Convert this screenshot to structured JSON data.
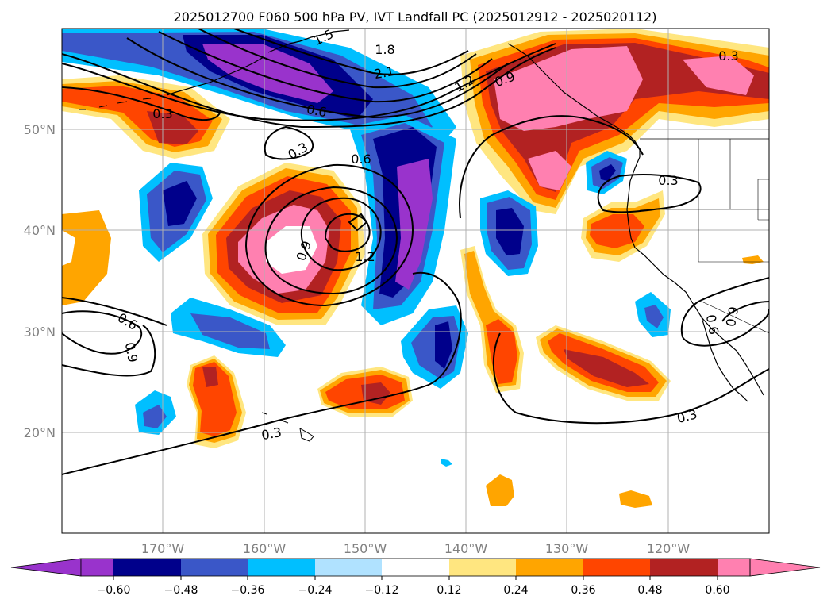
{
  "title": "2025012700 F060 500 hPa PV, IVT Landfall PC (2025012912 - 2025020112)",
  "map": {
    "projection": "PlateCarree",
    "lon_range": [
      -180,
      -110
    ],
    "lat_range": [
      10,
      60
    ],
    "lat_labels": [
      "20°N",
      "30°N",
      "40°N",
      "50°N"
    ],
    "lon_labels": [
      "170°W",
      "160°W",
      "150°W",
      "140°W",
      "130°W",
      "120°W"
    ],
    "gridlines": true,
    "land_outline_color": "#000000"
  },
  "colorbar": {
    "orientation": "horizontal",
    "extend": "both",
    "ticks": [
      "−0.60",
      "−0.48",
      "−0.36",
      "−0.24",
      "−0.12",
      "0.12",
      "0.24",
      "0.36",
      "0.48",
      "0.60"
    ],
    "levels": [
      -0.6,
      -0.48,
      -0.36,
      -0.24,
      -0.12,
      0.12,
      0.24,
      0.36,
      0.48,
      0.6
    ],
    "colors": [
      "#9933cc",
      "#00008b",
      "#3a57c8",
      "#00bfff",
      "#b0e2ff",
      "#ffffff",
      "#ffe680",
      "#ffa500",
      "#ff4500",
      "#b22222",
      "#ff80b0"
    ]
  },
  "contour_labels": [
    "1.5",
    "1.8",
    "2.1",
    "1.2",
    "0.9",
    "0.3",
    "0.6",
    "0.3",
    "0.6",
    "0.9",
    "1.2",
    "0.3",
    "0.6",
    "0.9",
    "0.3",
    "0.3",
    "0.6",
    "0.9",
    "0.3"
  ],
  "chart_data": {
    "type": "heatmap",
    "title": "2025012700 F060 500 hPa PV, IVT Landfall PC (2025012912 - 2025020112)",
    "fill_field_levels": [
      -0.6,
      -0.48,
      -0.36,
      -0.24,
      -0.12,
      0.12,
      0.24,
      0.36,
      0.48,
      0.6
    ],
    "contour_field_levels": [
      0.3,
      0.6,
      0.9,
      1.2,
      1.5,
      1.8,
      2.1
    ],
    "features": [
      {
        "sign": "negative",
        "lon": -158,
        "lat": 55.5,
        "max_abs": 0.6
      },
      {
        "sign": "negative",
        "lon": -145,
        "lat": 42,
        "max_abs": 0.6
      },
      {
        "sign": "positive",
        "lon": -130,
        "lat": 54.5,
        "max_abs": 0.6
      },
      {
        "sign": "positive",
        "lon": -156,
        "lat": 39,
        "max_abs": 0.6
      },
      {
        "sign": "positive",
        "lon": -176,
        "lat": 51,
        "max_abs": 0.48
      },
      {
        "sign": "positive",
        "lon": -126,
        "lat": 26,
        "max_abs": 0.48
      },
      {
        "sign": "positive",
        "lon": -151,
        "lat": 24,
        "max_abs": 0.48
      },
      {
        "sign": "negative",
        "lon": -170,
        "lat": 42,
        "max_abs": 0.48
      },
      {
        "sign": "negative",
        "lon": -136,
        "lat": 40,
        "max_abs": 0.48
      },
      {
        "sign": "negative",
        "lon": -142,
        "lat": 29,
        "max_abs": 0.48
      },
      {
        "sign": "negative",
        "lon": -123,
        "lat": 46.5,
        "max_abs": 0.48
      },
      {
        "sign": "positive",
        "lon": -120,
        "lat": 39,
        "max_abs": 0.36
      }
    ]
  }
}
